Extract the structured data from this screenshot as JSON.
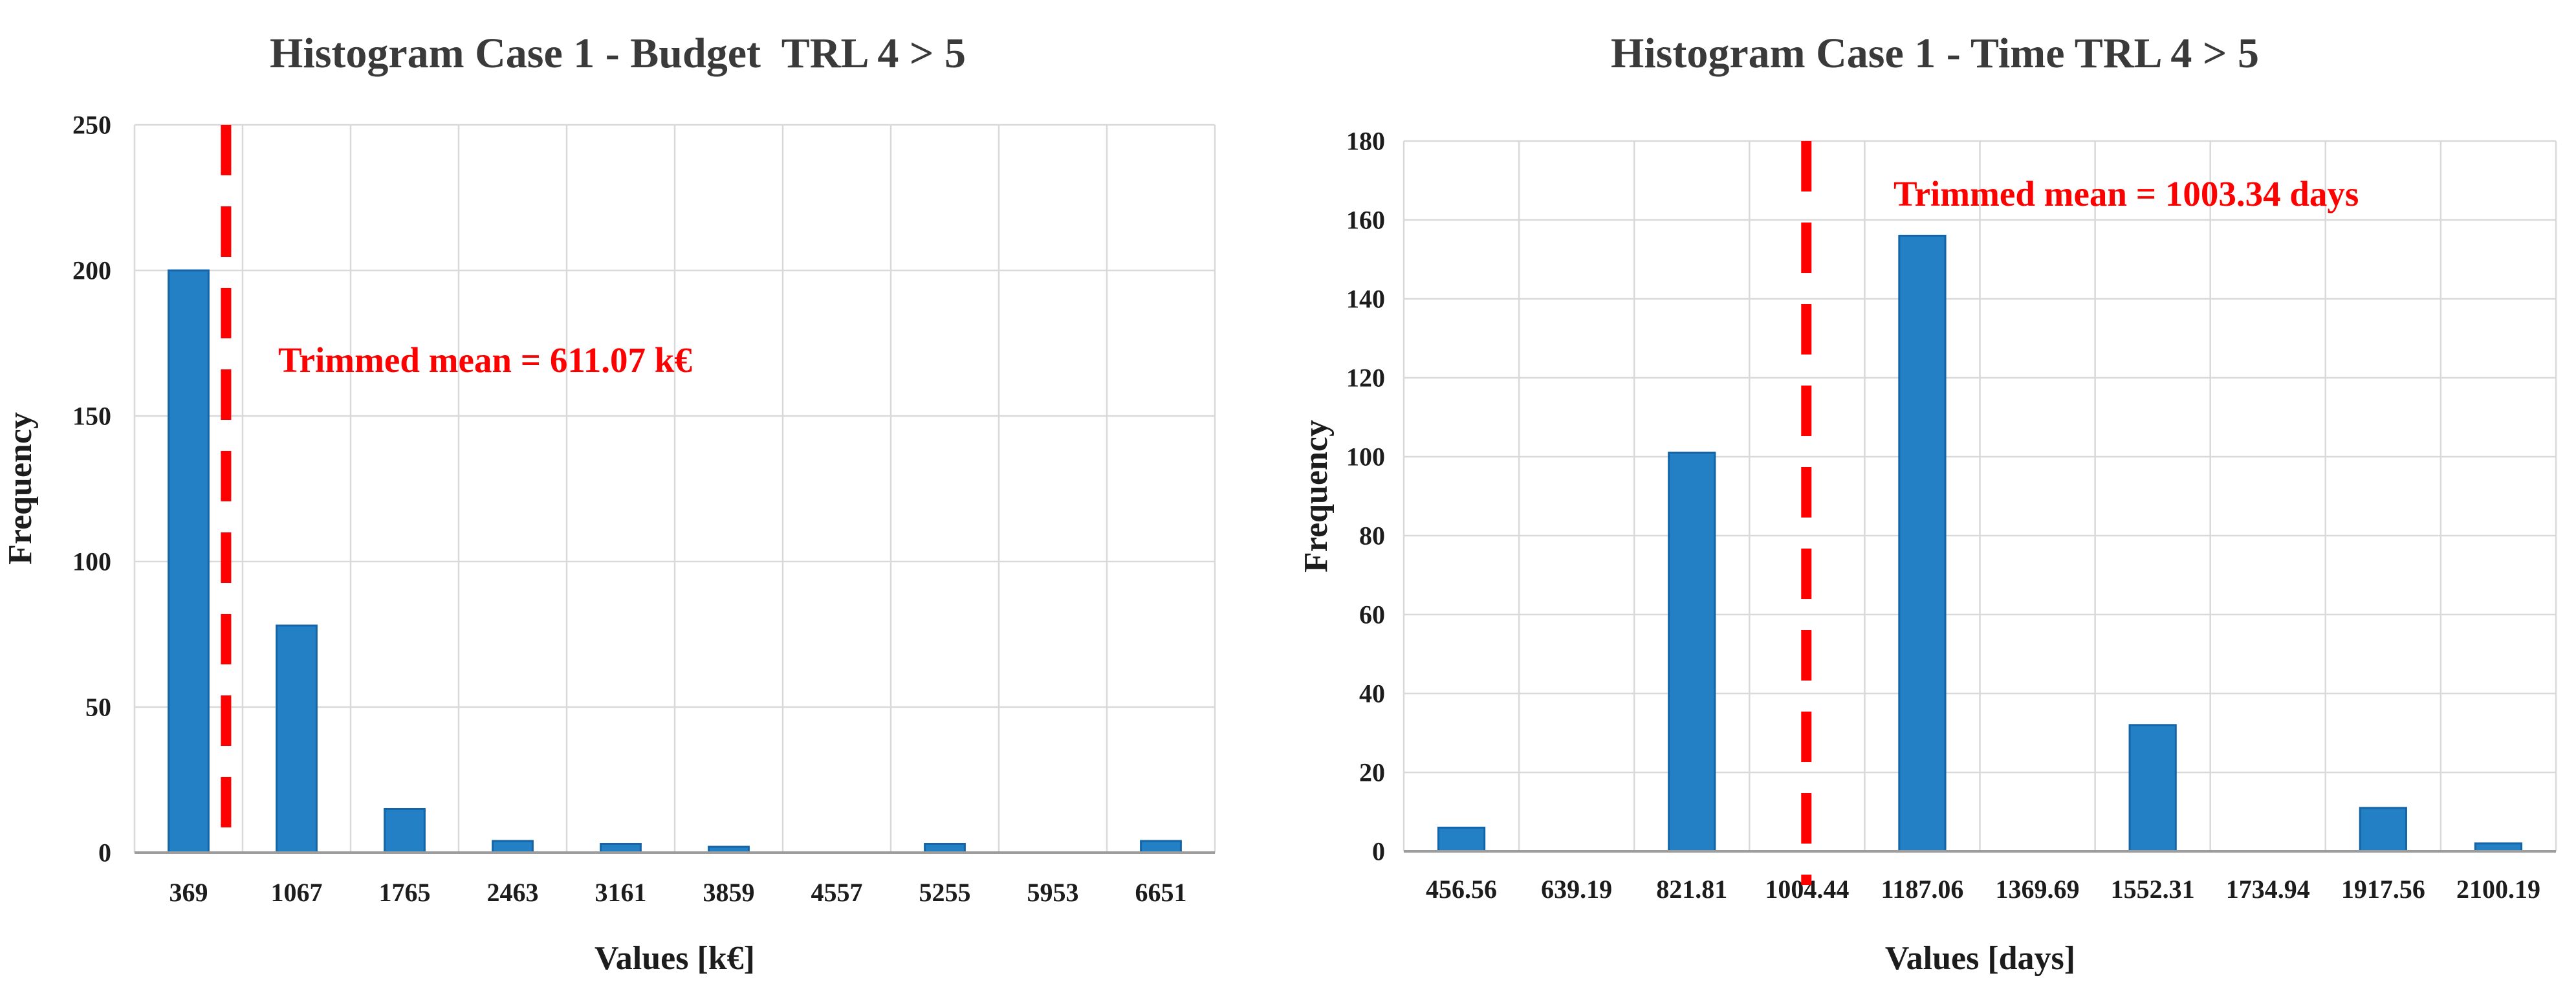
{
  "page": {
    "background": "#ffffff",
    "text_color": "#1c1c1c",
    "title_color": "#3a3a3a",
    "grid_color": "#d9d9d9",
    "axis_line_color": "#9d9d9d",
    "accent_red": "#ff0000",
    "bar_fill": "#2380c4",
    "bar_border": "#1465a8"
  },
  "chart_data": [
    {
      "type": "bar",
      "title": "Histogram Case 1 - Budget  TRL 4 > 5",
      "xlabel": "Values [k€]",
      "ylabel": "Frequency",
      "categories": [
        "369",
        "1067",
        "1765",
        "2463",
        "3161",
        "3859",
        "4557",
        "5255",
        "5953",
        "6651"
      ],
      "values": [
        200,
        78,
        15,
        4,
        3,
        2,
        0,
        3,
        0,
        4
      ],
      "ylim": [
        0,
        250
      ],
      "ytick_step": 50,
      "yticks": [
        "0",
        "50",
        "100",
        "150",
        "200",
        "250"
      ],
      "grid": true,
      "legend": "none",
      "bar_fill": "#2380c4",
      "bar_border": "#1465a8",
      "trimmed_mean": {
        "value": 611.07,
        "unit": "k€",
        "label": "Trimmed mean = 611.07 k€",
        "line_color": "#ff0000",
        "line_style": "dashed"
      }
    },
    {
      "type": "bar",
      "title": "Histogram Case 1 - Time TRL 4 > 5",
      "xlabel": "Values [days]",
      "ylabel": "Frequency",
      "categories": [
        "456.56",
        "639.19",
        "821.81",
        "1004.44",
        "1187.06",
        "1369.69",
        "1552.31",
        "1734.94",
        "1917.56",
        "2100.19"
      ],
      "values": [
        6,
        0,
        101,
        0,
        156,
        0,
        32,
        0,
        11,
        2
      ],
      "ylim": [
        0,
        180
      ],
      "ytick_step": 20,
      "yticks": [
        "0",
        "20",
        "40",
        "60",
        "80",
        "100",
        "120",
        "140",
        "160",
        "180"
      ],
      "grid": true,
      "legend": "none",
      "bar_fill": "#2380c4",
      "bar_border": "#1465a8",
      "trimmed_mean": {
        "value": 1003.34,
        "unit": "days",
        "label": "Trimmed mean = 1003.34 days",
        "line_color": "#ff0000",
        "line_style": "dashed"
      }
    }
  ]
}
